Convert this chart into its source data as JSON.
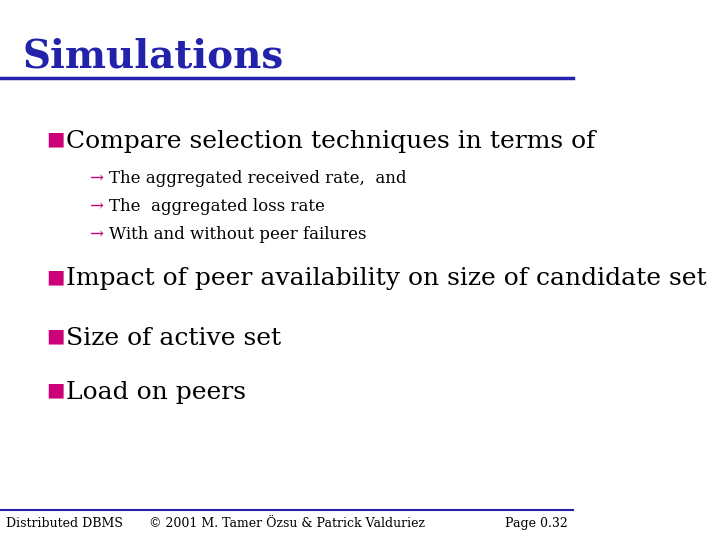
{
  "title": "Simulations",
  "title_color": "#2222AA",
  "title_fontsize": 28,
  "title_bold": true,
  "bg_color": "#FFFFFF",
  "slide_line_color": "#2222AA",
  "bullet_color": "#CC0077",
  "bullet_char": "■",
  "arrow_char": "→",
  "arrow_color": "#CC0077",
  "main_bullets": [
    "Compare selection techniques in terms of",
    "Impact of peer availability on size of candidate set",
    "Size of active set",
    "Load on peers"
  ],
  "sub_bullets": [
    "The aggregated received rate,  and",
    "The  aggregated loss rate",
    "With and without peer failures"
  ],
  "main_fontsize": 18,
  "sub_fontsize": 12,
  "footer_left": "Distributed DBMS",
  "footer_center": "© 2001 M. Tamer Özsu & Patrick Valduriez",
  "footer_right": "Page 0.32",
  "footer_fontsize": 9,
  "footer_color": "#000000",
  "footer_line_color": "#2222AA"
}
